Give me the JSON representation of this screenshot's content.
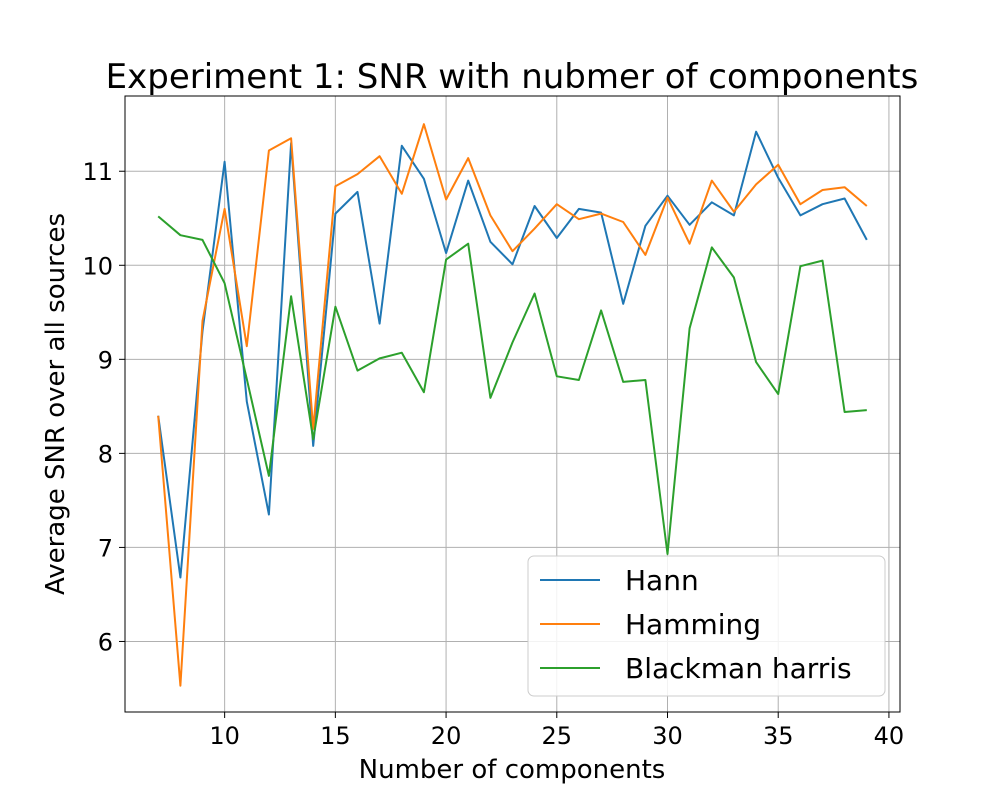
{
  "chart_data": {
    "type": "line",
    "title": "Experiment 1: SNR with nubmer of components",
    "xlabel": "Number of components",
    "ylabel": "Average SNR over all sources",
    "xlim": [
      5.5,
      40.5
    ],
    "ylim": [
      5.25,
      11.8
    ],
    "xticks": [
      10,
      15,
      20,
      25,
      30,
      35,
      40
    ],
    "yticks": [
      6,
      7,
      8,
      9,
      10,
      11
    ],
    "grid": true,
    "legend_position": "lower-right",
    "x": [
      7,
      8,
      9,
      10,
      11,
      12,
      13,
      14,
      15,
      16,
      17,
      18,
      19,
      20,
      21,
      22,
      23,
      24,
      25,
      26,
      27,
      28,
      29,
      30,
      31,
      32,
      33,
      34,
      35,
      36,
      37,
      38,
      39
    ],
    "series": [
      {
        "name": "Hann",
        "color": "#1f77b4",
        "values": [
          8.4,
          6.68,
          9.3,
          11.1,
          8.55,
          7.35,
          11.3,
          8.08,
          10.55,
          10.78,
          9.38,
          11.27,
          10.92,
          10.13,
          10.9,
          10.25,
          10.01,
          10.63,
          10.29,
          10.6,
          10.56,
          9.59,
          10.42,
          10.74,
          10.43,
          10.67,
          10.53,
          11.42,
          10.93,
          10.53,
          10.65,
          10.71,
          10.27
        ]
      },
      {
        "name": "Hamming",
        "color": "#ff7f0e",
        "values": [
          8.4,
          5.53,
          9.41,
          10.6,
          9.14,
          11.22,
          11.35,
          8.26,
          10.84,
          10.97,
          11.16,
          10.76,
          11.5,
          10.7,
          11.14,
          10.53,
          10.15,
          10.39,
          10.65,
          10.49,
          10.55,
          10.46,
          10.11,
          10.72,
          10.23,
          10.9,
          10.57,
          10.86,
          11.07,
          10.65,
          10.8,
          10.83,
          10.63
        ]
      },
      {
        "name": "Blackman harris",
        "color": "#2ca02c",
        "values": [
          10.52,
          10.32,
          10.27,
          9.81,
          8.79,
          7.76,
          9.67,
          8.15,
          9.56,
          8.88,
          9.01,
          9.07,
          8.65,
          10.06,
          10.23,
          8.59,
          9.18,
          9.7,
          8.82,
          8.78,
          9.52,
          8.76,
          8.78,
          6.93,
          9.33,
          10.19,
          9.87,
          8.97,
          8.63,
          9.99,
          10.05,
          8.44,
          8.46
        ]
      }
    ]
  }
}
